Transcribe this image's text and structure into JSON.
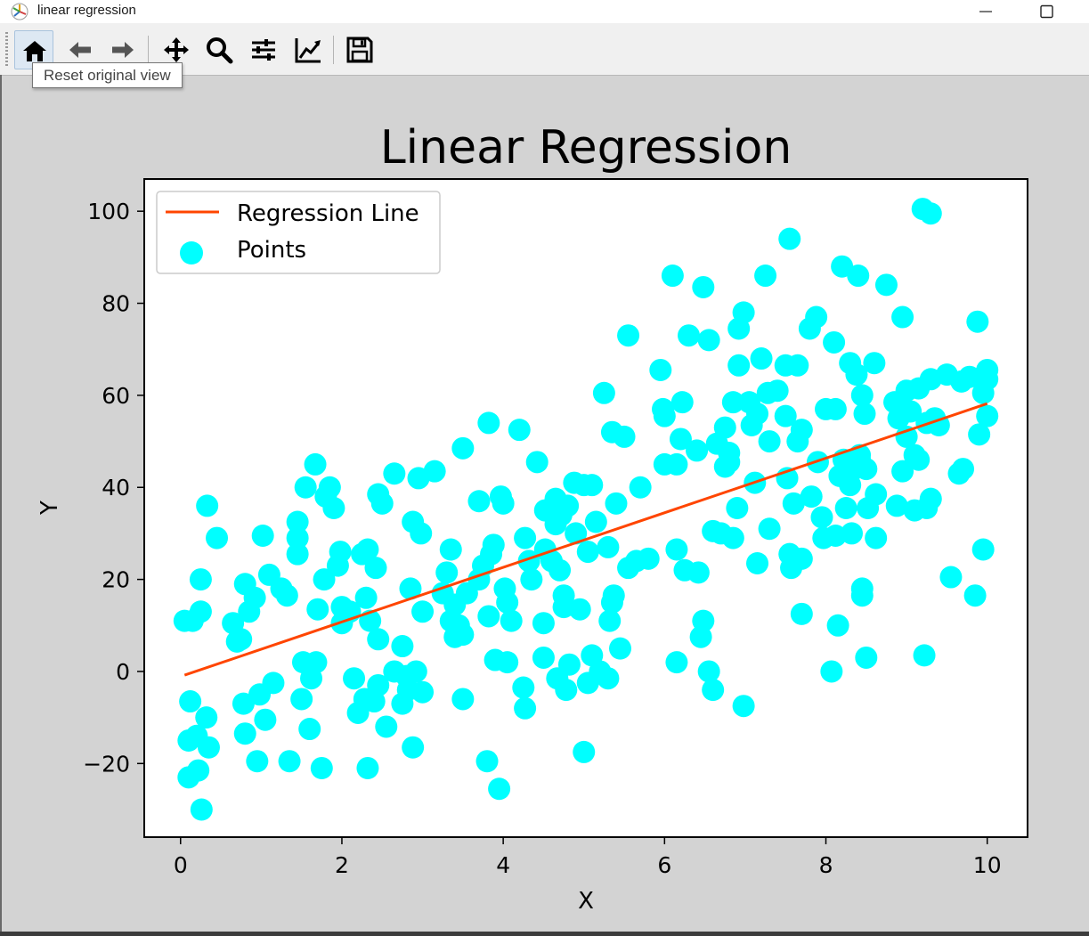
{
  "window": {
    "title": "linear regression",
    "minimize_icon": "minimize-icon",
    "maximize_icon": "maximize-icon"
  },
  "toolbar": {
    "buttons": [
      {
        "name": "home-icon",
        "label": "Home"
      },
      {
        "name": "back-icon",
        "label": "Back"
      },
      {
        "name": "forward-icon",
        "label": "Forward"
      },
      {
        "name": "pan-icon",
        "label": "Pan"
      },
      {
        "name": "zoom-icon",
        "label": "Zoom"
      },
      {
        "name": "subplots-icon",
        "label": "Subplots"
      },
      {
        "name": "customize-icon",
        "label": "Customize"
      },
      {
        "name": "save-icon",
        "label": "Save"
      }
    ],
    "tooltip": "Reset original view"
  },
  "colors": {
    "points": "#00ffff",
    "line": "#ff4500",
    "background": "#d3d3d3"
  },
  "chart_data": {
    "type": "scatter",
    "title": "Linear Regression",
    "xlabel": "X",
    "ylabel": "Y",
    "xlim": [
      -0.45,
      10.5
    ],
    "ylim": [
      -36,
      107
    ],
    "xticks": [
      0,
      2,
      4,
      6,
      8,
      10
    ],
    "xtick_labels": [
      "0",
      "2",
      "4",
      "6",
      "8",
      "10"
    ],
    "yticks": [
      -20,
      0,
      20,
      40,
      60,
      80,
      100
    ],
    "ytick_labels": [
      "−20",
      "0",
      "20",
      "40",
      "60",
      "80",
      "100"
    ],
    "legend": {
      "position": "upper left",
      "entries": [
        {
          "label": "Regression Line",
          "type": "line"
        },
        {
          "label": "Points",
          "type": "marker"
        }
      ]
    },
    "regression_line": {
      "x": [
        0.05,
        10.0
      ],
      "y": [
        -0.8,
        58.2
      ]
    },
    "points": [
      [
        0.05,
        11
      ],
      [
        0.1,
        -15
      ],
      [
        0.1,
        -23
      ],
      [
        0.15,
        11
      ],
      [
        0.12,
        -6.5
      ],
      [
        0.2,
        -14
      ],
      [
        0.22,
        -21.5
      ],
      [
        0.25,
        20
      ],
      [
        0.25,
        13
      ],
      [
        0.26,
        -30
      ],
      [
        0.32,
        -10
      ],
      [
        0.33,
        36
      ],
      [
        0.35,
        -16.5
      ],
      [
        0.45,
        29
      ],
      [
        0.65,
        10.5
      ],
      [
        0.7,
        6.5
      ],
      [
        0.75,
        7
      ],
      [
        0.78,
        -7
      ],
      [
        0.8,
        -13.5
      ],
      [
        0.8,
        19
      ],
      [
        0.85,
        13
      ],
      [
        0.92,
        16
      ],
      [
        0.95,
        -19.5
      ],
      [
        0.98,
        -5
      ],
      [
        1.02,
        29.5
      ],
      [
        1.05,
        -10.5
      ],
      [
        1.1,
        21
      ],
      [
        1.15,
        -2.5
      ],
      [
        1.25,
        18
      ],
      [
        1.32,
        16.5
      ],
      [
        1.35,
        -19.5
      ],
      [
        1.45,
        32.5
      ],
      [
        1.45,
        29
      ],
      [
        1.45,
        25.5
      ],
      [
        1.5,
        -6
      ],
      [
        1.52,
        2
      ],
      [
        1.55,
        40
      ],
      [
        1.6,
        -12.5
      ],
      [
        1.62,
        -1.5
      ],
      [
        1.67,
        45
      ],
      [
        1.68,
        2
      ],
      [
        1.7,
        13.5
      ],
      [
        1.75,
        -21
      ],
      [
        1.78,
        20
      ],
      [
        1.8,
        38
      ],
      [
        1.85,
        40
      ],
      [
        1.9,
        35.5
      ],
      [
        1.95,
        23
      ],
      [
        1.98,
        26
      ],
      [
        2.0,
        14
      ],
      [
        2.0,
        10.5
      ],
      [
        2.1,
        13
      ],
      [
        2.15,
        -1.5
      ],
      [
        2.2,
        -9
      ],
      [
        2.25,
        25.5
      ],
      [
        2.28,
        -6
      ],
      [
        2.3,
        16
      ],
      [
        2.32,
        -21
      ],
      [
        2.32,
        26.5
      ],
      [
        2.35,
        11
      ],
      [
        2.4,
        -6.5
      ],
      [
        2.42,
        22.5
      ],
      [
        2.45,
        -3
      ],
      [
        2.45,
        7
      ],
      [
        2.45,
        38.5
      ],
      [
        2.5,
        36.5
      ],
      [
        2.55,
        -12
      ],
      [
        2.65,
        43
      ],
      [
        2.65,
        0
      ],
      [
        2.75,
        5.5
      ],
      [
        2.75,
        -7
      ],
      [
        2.8,
        -1
      ],
      [
        2.82,
        -4
      ],
      [
        2.85,
        18
      ],
      [
        2.88,
        -16.5
      ],
      [
        2.88,
        32.5
      ],
      [
        2.92,
        0
      ],
      [
        2.95,
        42
      ],
      [
        2.98,
        30
      ],
      [
        3.0,
        13
      ],
      [
        3.0,
        -4.5
      ],
      [
        3.15,
        43.5
      ],
      [
        3.25,
        17
      ],
      [
        3.3,
        21.5
      ],
      [
        3.35,
        26.5
      ],
      [
        3.35,
        11
      ],
      [
        3.4,
        7.5
      ],
      [
        3.4,
        14.5
      ],
      [
        3.45,
        10
      ],
      [
        3.5,
        48.5
      ],
      [
        3.5,
        8
      ],
      [
        3.5,
        -6
      ],
      [
        3.55,
        17
      ],
      [
        3.7,
        20
      ],
      [
        3.7,
        37
      ],
      [
        3.75,
        23
      ],
      [
        3.8,
        -19.5
      ],
      [
        3.82,
        12
      ],
      [
        3.82,
        54
      ],
      [
        3.85,
        25.5
      ],
      [
        3.88,
        27.5
      ],
      [
        3.9,
        2.5
      ],
      [
        3.95,
        -25.5
      ],
      [
        3.97,
        38
      ],
      [
        4.0,
        36.5
      ],
      [
        4.02,
        18
      ],
      [
        4.05,
        2
      ],
      [
        4.05,
        15
      ],
      [
        4.1,
        11
      ],
      [
        4.2,
        52.5
      ],
      [
        4.25,
        -3.5
      ],
      [
        4.27,
        -8
      ],
      [
        4.27,
        29
      ],
      [
        4.32,
        24
      ],
      [
        4.35,
        20
      ],
      [
        4.42,
        45.5
      ],
      [
        4.5,
        3
      ],
      [
        4.5,
        10.5
      ],
      [
        4.52,
        26.5
      ],
      [
        4.52,
        35
      ],
      [
        4.6,
        24
      ],
      [
        4.65,
        37.5
      ],
      [
        4.65,
        32
      ],
      [
        4.67,
        -1.5
      ],
      [
        4.7,
        22
      ],
      [
        4.72,
        34
      ],
      [
        4.75,
        16.5
      ],
      [
        4.75,
        14
      ],
      [
        4.78,
        -4
      ],
      [
        4.8,
        36
      ],
      [
        4.82,
        1.5
      ],
      [
        4.88,
        41
      ],
      [
        4.9,
        30
      ],
      [
        4.95,
        13.5
      ],
      [
        5.0,
        40.5
      ],
      [
        5.0,
        -17.5
      ],
      [
        5.05,
        26
      ],
      [
        5.05,
        -2.5
      ],
      [
        5.1,
        40.5
      ],
      [
        5.1,
        3.5
      ],
      [
        5.15,
        32.5
      ],
      [
        5.2,
        0
      ],
      [
        5.25,
        60.5
      ],
      [
        5.3,
        27
      ],
      [
        5.3,
        -1.5
      ],
      [
        5.32,
        11
      ],
      [
        5.35,
        52
      ],
      [
        5.35,
        15
      ],
      [
        5.37,
        16.5
      ],
      [
        5.4,
        36.5
      ],
      [
        5.45,
        5
      ],
      [
        5.5,
        51
      ],
      [
        5.55,
        73
      ],
      [
        5.55,
        22.5
      ],
      [
        5.65,
        24
      ],
      [
        5.7,
        40
      ],
      [
        5.8,
        24.5
      ],
      [
        5.95,
        65.5
      ],
      [
        5.98,
        57
      ],
      [
        6.0,
        55.5
      ],
      [
        6.0,
        45
      ],
      [
        6.1,
        86
      ],
      [
        6.15,
        2
      ],
      [
        6.15,
        26.5
      ],
      [
        6.15,
        45
      ],
      [
        6.2,
        50.5
      ],
      [
        6.22,
        58.5
      ],
      [
        6.25,
        22
      ],
      [
        6.3,
        73
      ],
      [
        6.4,
        48
      ],
      [
        6.42,
        21.5
      ],
      [
        6.45,
        7.5
      ],
      [
        6.48,
        11
      ],
      [
        6.48,
        83.5
      ],
      [
        6.55,
        72
      ],
      [
        6.55,
        0
      ],
      [
        6.6,
        -4
      ],
      [
        6.6,
        30.5
      ],
      [
        6.65,
        49.5
      ],
      [
        6.7,
        30
      ],
      [
        6.75,
        44.5
      ],
      [
        6.75,
        53
      ],
      [
        6.8,
        45.5
      ],
      [
        6.8,
        47.5
      ],
      [
        6.85,
        58.5
      ],
      [
        6.85,
        29
      ],
      [
        6.9,
        35.5
      ],
      [
        6.92,
        74.5
      ],
      [
        6.92,
        66.5
      ],
      [
        6.98,
        78
      ],
      [
        6.98,
        -7.5
      ],
      [
        7.05,
        58.5
      ],
      [
        7.08,
        53.5
      ],
      [
        7.12,
        41
      ],
      [
        7.15,
        56
      ],
      [
        7.15,
        23.5
      ],
      [
        7.2,
        68
      ],
      [
        7.25,
        86
      ],
      [
        7.28,
        60.5
      ],
      [
        7.3,
        31
      ],
      [
        7.3,
        50
      ],
      [
        7.4,
        61
      ],
      [
        7.5,
        66.5
      ],
      [
        7.5,
        55.5
      ],
      [
        7.52,
        42
      ],
      [
        7.55,
        94
      ],
      [
        7.55,
        25.5
      ],
      [
        7.57,
        22.5
      ],
      [
        7.6,
        36.5
      ],
      [
        7.65,
        66.5
      ],
      [
        7.65,
        50
      ],
      [
        7.7,
        52.5
      ],
      [
        7.7,
        24.5
      ],
      [
        7.7,
        12.5
      ],
      [
        7.8,
        74.5
      ],
      [
        7.82,
        38
      ],
      [
        7.88,
        77
      ],
      [
        7.9,
        45.5
      ],
      [
        7.95,
        33.5
      ],
      [
        7.97,
        29
      ],
      [
        8.0,
        57
      ],
      [
        8.07,
        0
      ],
      [
        8.1,
        71.5
      ],
      [
        8.12,
        57
      ],
      [
        8.12,
        29.5
      ],
      [
        8.15,
        10
      ],
      [
        8.17,
        42.5
      ],
      [
        8.2,
        88
      ],
      [
        8.22,
        46
      ],
      [
        8.25,
        35.5
      ],
      [
        8.3,
        40.5
      ],
      [
        8.3,
        67
      ],
      [
        8.32,
        30
      ],
      [
        8.35,
        44
      ],
      [
        8.38,
        64.5
      ],
      [
        8.4,
        86
      ],
      [
        8.42,
        46
      ],
      [
        8.42,
        47
      ],
      [
        8.45,
        18
      ],
      [
        8.45,
        16.5
      ],
      [
        8.45,
        60
      ],
      [
        8.48,
        56
      ],
      [
        8.5,
        3
      ],
      [
        8.5,
        44
      ],
      [
        8.52,
        35.5
      ],
      [
        8.6,
        67
      ],
      [
        8.62,
        38.5
      ],
      [
        8.62,
        29
      ],
      [
        8.75,
        84
      ],
      [
        8.85,
        58.5
      ],
      [
        8.88,
        36
      ],
      [
        8.9,
        55
      ],
      [
        8.95,
        77
      ],
      [
        8.95,
        43.5
      ],
      [
        9.0,
        51
      ],
      [
        9.0,
        61
      ],
      [
        9.05,
        56.5
      ],
      [
        9.1,
        47
      ],
      [
        9.1,
        35
      ],
      [
        9.15,
        46
      ],
      [
        9.15,
        61.5
      ],
      [
        9.2,
        100.5
      ],
      [
        9.22,
        3.5
      ],
      [
        9.25,
        35.5
      ],
      [
        9.25,
        54
      ],
      [
        9.3,
        99.5
      ],
      [
        9.3,
        37.5
      ],
      [
        9.3,
        63.5
      ],
      [
        9.35,
        55
      ],
      [
        9.4,
        53.5
      ],
      [
        9.5,
        64.5
      ],
      [
        9.55,
        20.5
      ],
      [
        9.65,
        43
      ],
      [
        9.68,
        63
      ],
      [
        9.7,
        44
      ],
      [
        9.78,
        64
      ],
      [
        9.85,
        16.5
      ],
      [
        9.88,
        76
      ],
      [
        9.9,
        51.5
      ],
      [
        9.95,
        60.5
      ],
      [
        9.95,
        26.5
      ],
      [
        10.0,
        55.5
      ],
      [
        10.0,
        63.5
      ],
      [
        10.0,
        65.5
      ]
    ]
  }
}
